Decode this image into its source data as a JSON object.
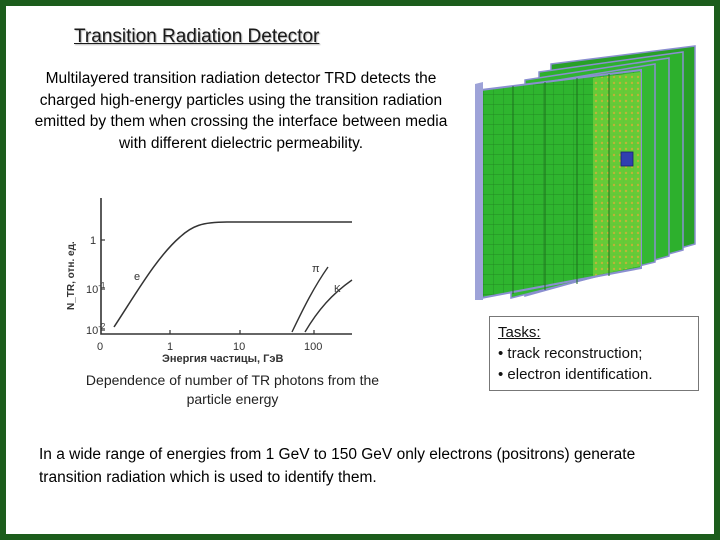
{
  "title": "Transition Radiation Detector",
  "intro": "Multilayered transition radiation detector TRD detects the charged high-energy particles using the transition radiation emitted by them when crossing the interface between media with different dielectric permeability.",
  "figure_caption": "Dependence of number of TR photons from the particle energy",
  "chart": {
    "xlabel": "Энергия частицы, ГэВ",
    "ylabel": "N_TR, отн. ед.",
    "x_ticks": [
      "0",
      "1",
      "10",
      "100"
    ],
    "y_ticks": [
      "1",
      "10-1",
      "10-2"
    ],
    "curve_labels": [
      "e",
      "π",
      "K"
    ]
  },
  "tasks": {
    "heading": "Tasks:",
    "items": [
      "• track reconstruction;",
      "• electron identification."
    ]
  },
  "summary": "In a wide range of energies from 1 GeV to 150 GeV only electrons (positrons) generate transition radiation which is used to identify them.",
  "colors": {
    "frame": "#1c5d1c",
    "detector_green": "#2fb52f",
    "detector_frame": "#8a8fd0"
  }
}
